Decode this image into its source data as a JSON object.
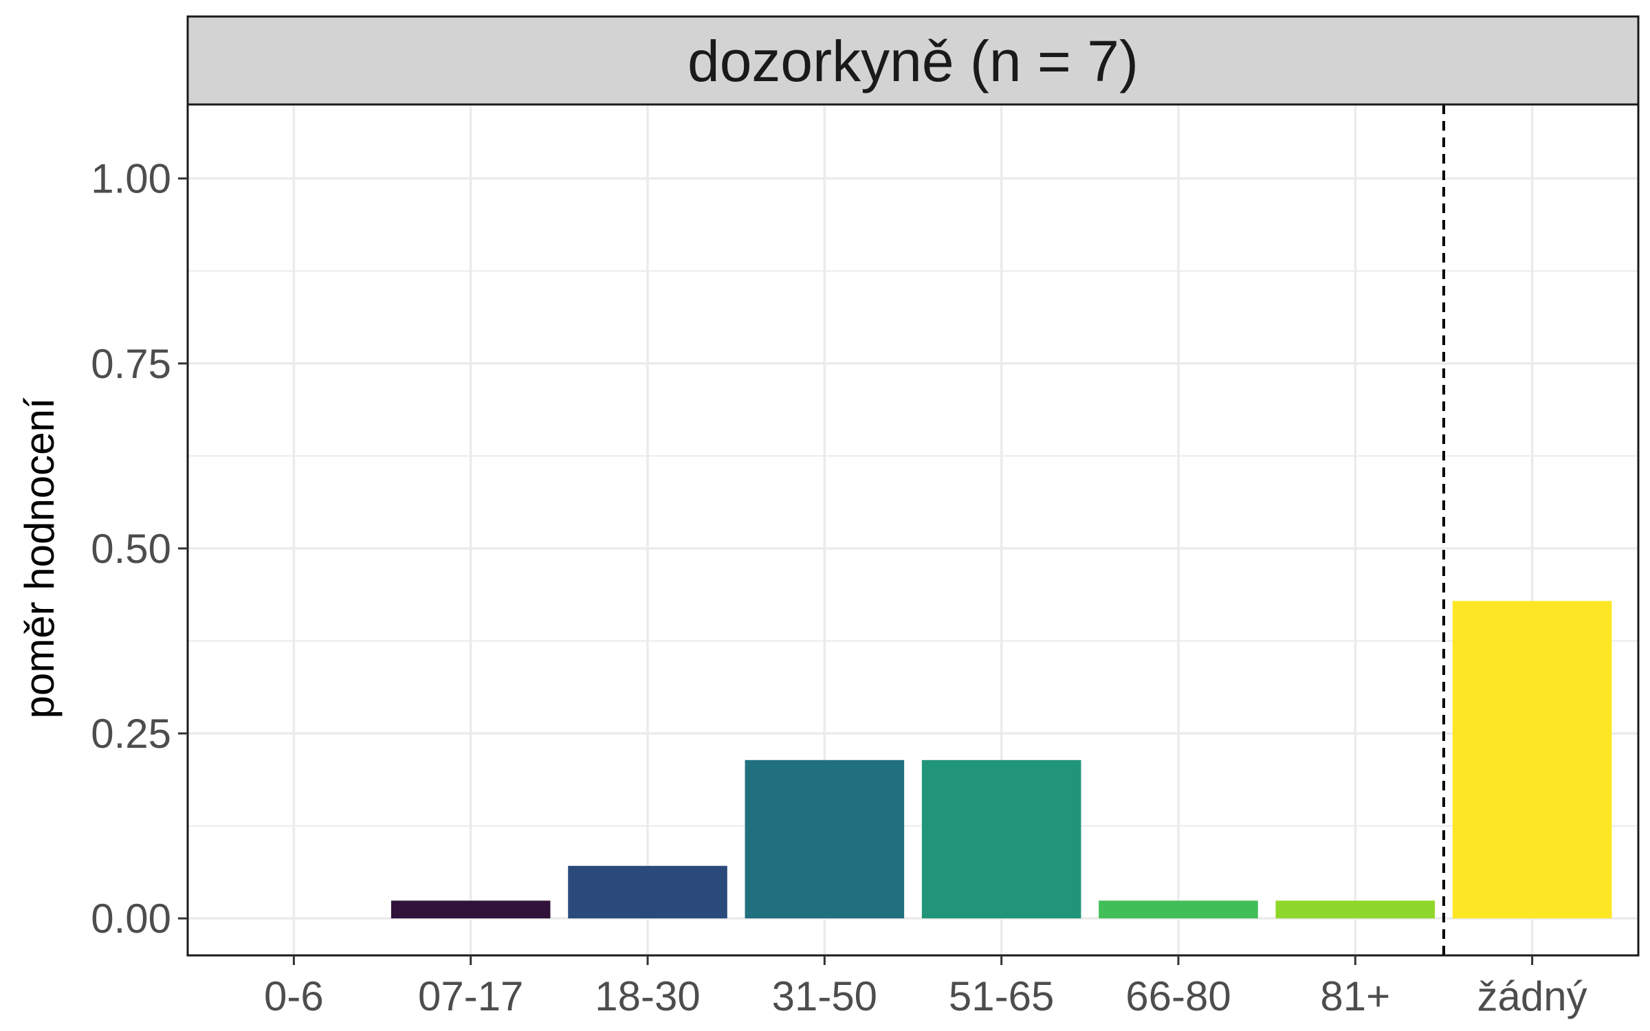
{
  "chart_data": {
    "type": "bar",
    "title": "dozorkyně (n = 7)",
    "xlabel": "",
    "ylabel": "poměr hodnocení",
    "ylim": [
      -0.05,
      1.1
    ],
    "yticks": [
      "0.00",
      "0.25",
      "0.50",
      "0.75",
      "1.00"
    ],
    "ytick_values": [
      0,
      0.25,
      0.5,
      0.75,
      1.0
    ],
    "categories": [
      "0-6",
      "07-17",
      "18-30",
      "31-50",
      "51-65",
      "66-80",
      "81+",
      "žádný"
    ],
    "values": [
      0,
      0.024,
      0.071,
      0.214,
      0.214,
      0.024,
      0.024,
      0.429
    ],
    "colors": [
      "#440154",
      "#30123b",
      "#2a4a7b",
      "#21707f",
      "#21957a",
      "#41be58",
      "#8fd72a",
      "#fde725"
    ],
    "vline_after_category": "81+",
    "vline_style": "dashed",
    "grid": true,
    "legend": "none"
  }
}
